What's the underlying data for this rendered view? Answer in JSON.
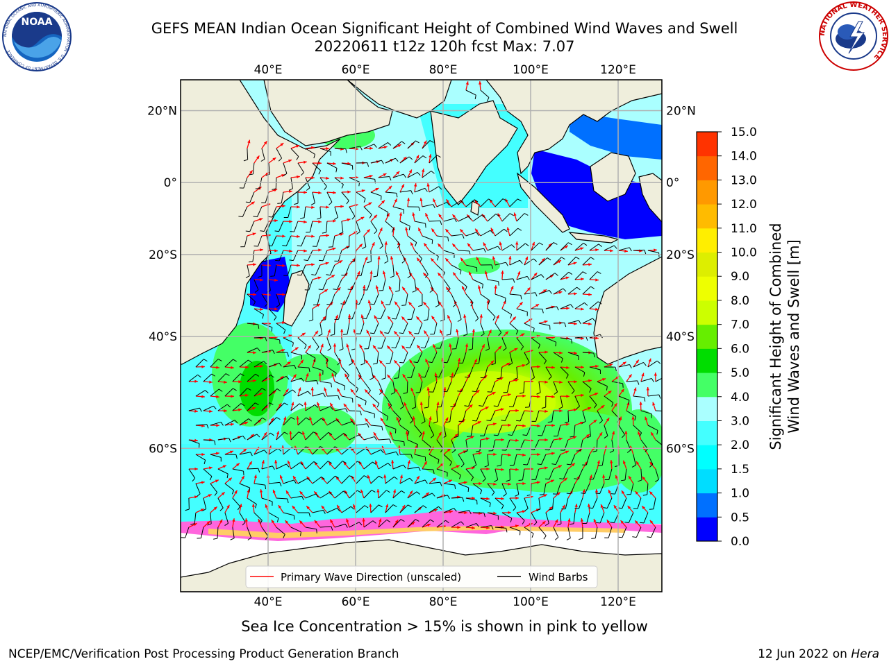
{
  "title": {
    "line1": "GEFS MEAN Indian Ocean Significant Height of Combined Wind Waves and Swell",
    "line2": "20220611 t12z 120h fcst   Max: 7.07"
  },
  "logos": {
    "left": {
      "icon": "noaa-logo",
      "text": "NOAA",
      "ring": "NATIONAL OCEANIC AND ATMOSPHERIC ADMINISTRATION · U.S. DEPARTMENT OF COMMERCE"
    },
    "right": {
      "icon": "nws-logo",
      "ring": "NATIONAL WEATHER SERVICE"
    }
  },
  "map": {
    "lon_range": [
      20,
      130
    ],
    "lat_range": [
      -75,
      28
    ],
    "lon_ticks": [
      {
        "value": 40,
        "label": "40°E"
      },
      {
        "value": 60,
        "label": "60°E"
      },
      {
        "value": 80,
        "label": "80°E"
      },
      {
        "value": 100,
        "label": "100°E"
      },
      {
        "value": 120,
        "label": "120°E"
      }
    ],
    "lat_ticks": [
      {
        "value": 20,
        "label": "20°N"
      },
      {
        "value": 0,
        "label": "0°"
      },
      {
        "value": -20,
        "label": "20°S"
      },
      {
        "value": -40,
        "label": "40°S"
      },
      {
        "value": -60,
        "label": "60°S"
      }
    ],
    "gridlines": true,
    "land_color": "#efeedc",
    "legend": {
      "placement": "bottom-center",
      "items": [
        {
          "label": "Primary Wave Direction (unscaled)",
          "color": "#ff0000"
        },
        {
          "label": "Wind Barbs",
          "color": "#000000"
        }
      ]
    }
  },
  "colorbar": {
    "label_line1": "Significant Height of Combined",
    "label_line2": "Wind Waves and Swell [m]",
    "levels": [
      {
        "value": "0.0",
        "color": "#0000ff"
      },
      {
        "value": "0.5",
        "color": "#0070ff"
      },
      {
        "value": "1.0",
        "color": "#00ddff"
      },
      {
        "value": "1.5",
        "color": "#00ffff"
      },
      {
        "value": "2.0",
        "color": "#44ffff"
      },
      {
        "value": "3.0",
        "color": "#aaffff"
      },
      {
        "value": "4.0",
        "color": "#44ff66"
      },
      {
        "value": "5.0",
        "color": "#00dd00"
      },
      {
        "value": "6.0",
        "color": "#66ee00"
      },
      {
        "value": "7.0",
        "color": "#ccff00"
      },
      {
        "value": "8.0",
        "color": "#eeff00"
      },
      {
        "value": "9.0",
        "color": "#ddee00"
      },
      {
        "value": "10.0",
        "color": "#ffee00"
      },
      {
        "value": "11.0",
        "color": "#ffbb00"
      },
      {
        "value": "12.0",
        "color": "#ff9900"
      },
      {
        "value": "13.0",
        "color": "#ff6600"
      },
      {
        "value": "14.0",
        "color": "#ff3300"
      },
      {
        "value": "15.0",
        "color": "#ff0000"
      }
    ]
  },
  "ice_note": "Sea Ice Concentration > 15% is shown in pink to yellow",
  "footer": {
    "left": "NCEP/EMC/Verification Post Processing Product Generation Branch",
    "right_prefix": "12 Jun 2022 on ",
    "right_host": "Hera"
  }
}
